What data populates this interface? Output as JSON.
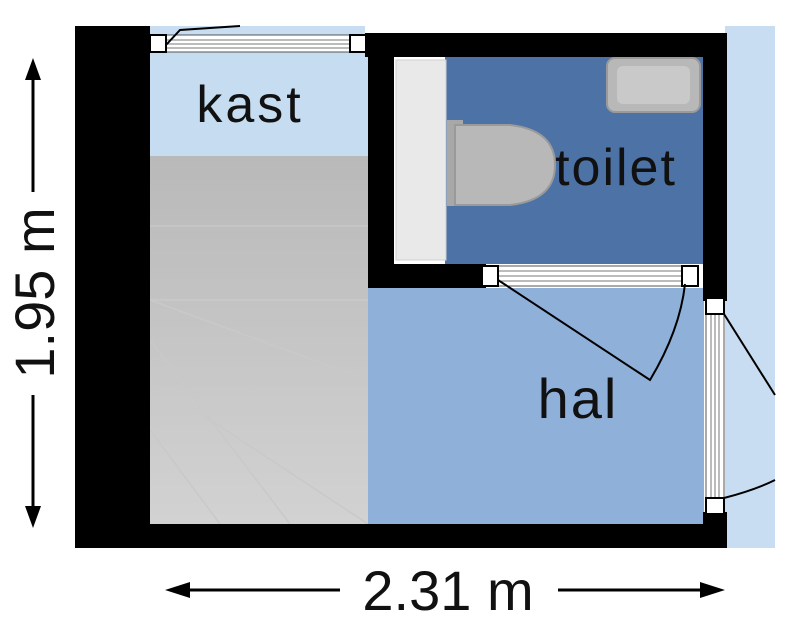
{
  "rooms": {
    "kast": "kast",
    "toilet": "toilet",
    "hal": "hal"
  },
  "dimensions": {
    "height": "1.95 m",
    "width": "2.31 m"
  },
  "colors": {
    "wall": "#000000",
    "kast_floor": "#c5dcf1",
    "toilet_floor": "#4d72a6",
    "hal_floor": "#8fb0d9",
    "stairs": "#bcbcbc",
    "outside": "#c9ddf2",
    "fixture": "#b7b7b7"
  }
}
